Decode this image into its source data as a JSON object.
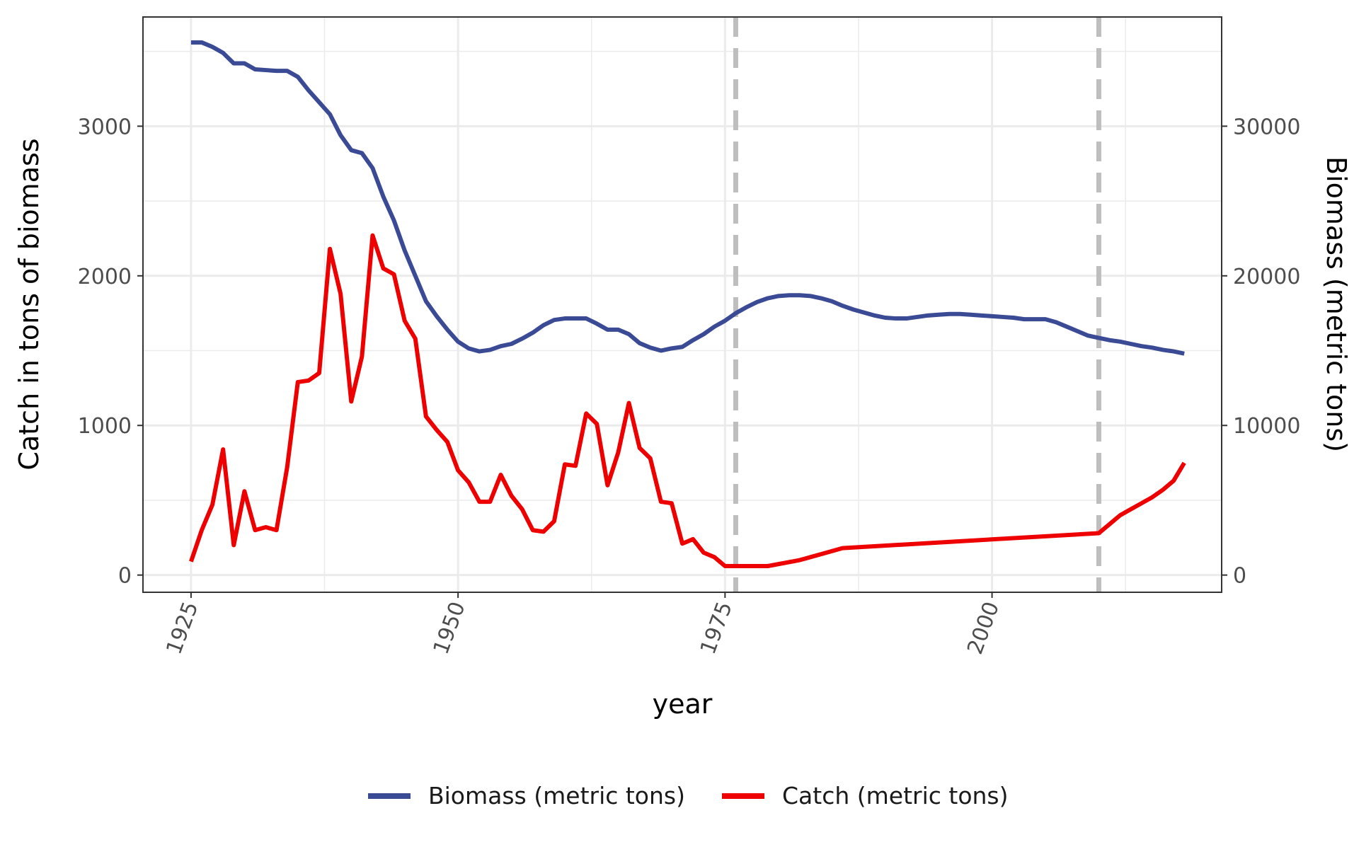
{
  "chart_data": {
    "type": "line",
    "title": "",
    "xlabel": "year",
    "ylabel_left": "Catch in tons of biomass",
    "ylabel_right": "Biomass (metric tons)",
    "xlim": [
      1920.5,
      2021.5
    ],
    "ylim_left": [
      -115,
      3730
    ],
    "ylim_right": [
      -1150,
      37300
    ],
    "x_ticks": [
      1925,
      1950,
      1975,
      2000
    ],
    "y_left_ticks": [
      0,
      1000,
      2000,
      3000
    ],
    "y_right_ticks": [
      0,
      10000,
      20000,
      30000
    ],
    "y_right_tick_labels": [
      "0",
      "10000",
      "20000",
      "30000"
    ],
    "x_tick_rotation": -70,
    "grid": true,
    "legend_position": "bottom",
    "reference_lines": [
      {
        "x": 1976,
        "style": "dashed",
        "color": "#bebebe"
      },
      {
        "x": 2010,
        "style": "dashed",
        "color": "#bebebe"
      }
    ],
    "series": [
      {
        "name": "Biomass (metric tons)",
        "axis": "right",
        "color": "#3b4a94",
        "x": [
          1925,
          1926,
          1927,
          1928,
          1929,
          1930,
          1931,
          1932,
          1933,
          1934,
          1935,
          1936,
          1937,
          1938,
          1939,
          1940,
          1941,
          1942,
          1943,
          1944,
          1945,
          1946,
          1947,
          1948,
          1949,
          1950,
          1951,
          1952,
          1953,
          1954,
          1955,
          1956,
          1957,
          1958,
          1959,
          1960,
          1961,
          1962,
          1963,
          1964,
          1965,
          1966,
          1967,
          1968,
          1969,
          1970,
          1971,
          1972,
          1973,
          1974,
          1975,
          1976,
          1977,
          1978,
          1979,
          1980,
          1981,
          1982,
          1983,
          1984,
          1985,
          1986,
          1987,
          1988,
          1989,
          1990,
          1991,
          1992,
          1993,
          1994,
          1995,
          1996,
          1997,
          1998,
          1999,
          2000,
          2001,
          2002,
          2003,
          2004,
          2005,
          2006,
          2007,
          2008,
          2009,
          2010,
          2011,
          2012,
          2013,
          2014,
          2015,
          2016,
          2017,
          2018
        ],
        "values": [
          35600,
          35600,
          35300,
          34900,
          34200,
          34200,
          33800,
          33750,
          33700,
          33700,
          33300,
          32400,
          31600,
          30800,
          29400,
          28400,
          28200,
          27200,
          25300,
          23700,
          21700,
          20000,
          18300,
          17300,
          16400,
          15600,
          15150,
          14950,
          15050,
          15300,
          15450,
          15800,
          16200,
          16700,
          17050,
          17150,
          17150,
          17150,
          16800,
          16400,
          16400,
          16100,
          15500,
          15200,
          15000,
          15150,
          15250,
          15700,
          16100,
          16600,
          17000,
          17500,
          17900,
          18250,
          18500,
          18650,
          18700,
          18700,
          18650,
          18500,
          18300,
          18000,
          17750,
          17550,
          17350,
          17200,
          17150,
          17150,
          17250,
          17350,
          17400,
          17450,
          17450,
          17400,
          17350,
          17300,
          17250,
          17200,
          17100,
          17100,
          17100,
          16900,
          16600,
          16300,
          16000,
          15850,
          15700,
          15600,
          15450,
          15300,
          15200,
          15050,
          14950,
          14800
        ]
      },
      {
        "name": "Catch (metric tons)",
        "axis": "left",
        "color": "#ee0000",
        "x": [
          1925,
          1926,
          1927,
          1928,
          1929,
          1930,
          1931,
          1932,
          1933,
          1934,
          1935,
          1936,
          1937,
          1938,
          1939,
          1940,
          1941,
          1942,
          1943,
          1944,
          1945,
          1946,
          1947,
          1948,
          1949,
          1950,
          1951,
          1952,
          1953,
          1954,
          1955,
          1956,
          1957,
          1958,
          1959,
          1960,
          1961,
          1962,
          1963,
          1964,
          1965,
          1966,
          1967,
          1968,
          1969,
          1970,
          1971,
          1972,
          1973,
          1974,
          1975,
          1976,
          1979,
          1982,
          1984,
          1986,
          2010,
          2011,
          2012,
          2013,
          2014,
          2015,
          2016,
          2017,
          2018
        ],
        "values": [
          90,
          300,
          470,
          840,
          200,
          560,
          300,
          320,
          300,
          720,
          1290,
          1300,
          1350,
          2180,
          1880,
          1160,
          1460,
          2270,
          2050,
          2010,
          1700,
          1580,
          1060,
          970,
          890,
          700,
          620,
          490,
          490,
          670,
          530,
          440,
          300,
          290,
          360,
          740,
          730,
          1080,
          1010,
          600,
          820,
          1150,
          850,
          780,
          490,
          480,
          210,
          240,
          150,
          120,
          60,
          60,
          60,
          100,
          140,
          180,
          280,
          340,
          400,
          440,
          480,
          520,
          570,
          630,
          750
        ]
      }
    ]
  }
}
